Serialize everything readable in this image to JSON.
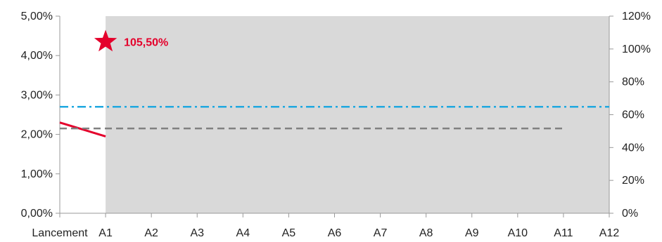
{
  "chart_data": {
    "type": "line",
    "categories": [
      "Lancement",
      "A1",
      "A2",
      "A3",
      "A4",
      "A5",
      "A6",
      "A7",
      "A8",
      "A9",
      "A10",
      "A11",
      "A12"
    ],
    "y_left": {
      "ylim": [
        0,
        5
      ],
      "ticks": [
        0,
        1,
        2,
        3,
        4,
        5
      ],
      "tick_labels": [
        "0,00%",
        "1,00%",
        "2,00%",
        "3,00%",
        "4,00%",
        "5,00%"
      ]
    },
    "y_right": {
      "ylim": [
        0,
        120
      ],
      "ticks": [
        0,
        20,
        40,
        60,
        80,
        100,
        120
      ],
      "tick_labels": [
        "0%",
        "20%",
        "40%",
        "60%",
        "80%",
        "100%",
        "120%"
      ]
    },
    "shaded_region": {
      "from": "A1",
      "to": "A12",
      "color": "#d9d9d9"
    },
    "series": [
      {
        "style": "solid",
        "color": "#e4002b",
        "axis": "left",
        "points": [
          {
            "x": "Lancement",
            "y": 2.3
          },
          {
            "x": "A1",
            "y": 1.95
          }
        ]
      },
      {
        "style": "dashed",
        "color": "#808080",
        "axis": "left",
        "points": [
          {
            "x": "Lancement",
            "y": 2.15
          },
          {
            "x": "A11",
            "y": 2.15
          }
        ]
      },
      {
        "style": "dash-dot",
        "color": "#1fa8e0",
        "axis": "left",
        "points": [
          {
            "x": "Lancement",
            "y": 2.7
          },
          {
            "x": "A12",
            "y": 2.7
          }
        ]
      }
    ],
    "marker": {
      "shape": "star",
      "color": "#e4002b",
      "x": "A1",
      "y_left": 4.35,
      "label": "105,50%"
    },
    "title": "",
    "xlabel": "",
    "ylabel": "",
    "grid": false,
    "legend": "none"
  }
}
